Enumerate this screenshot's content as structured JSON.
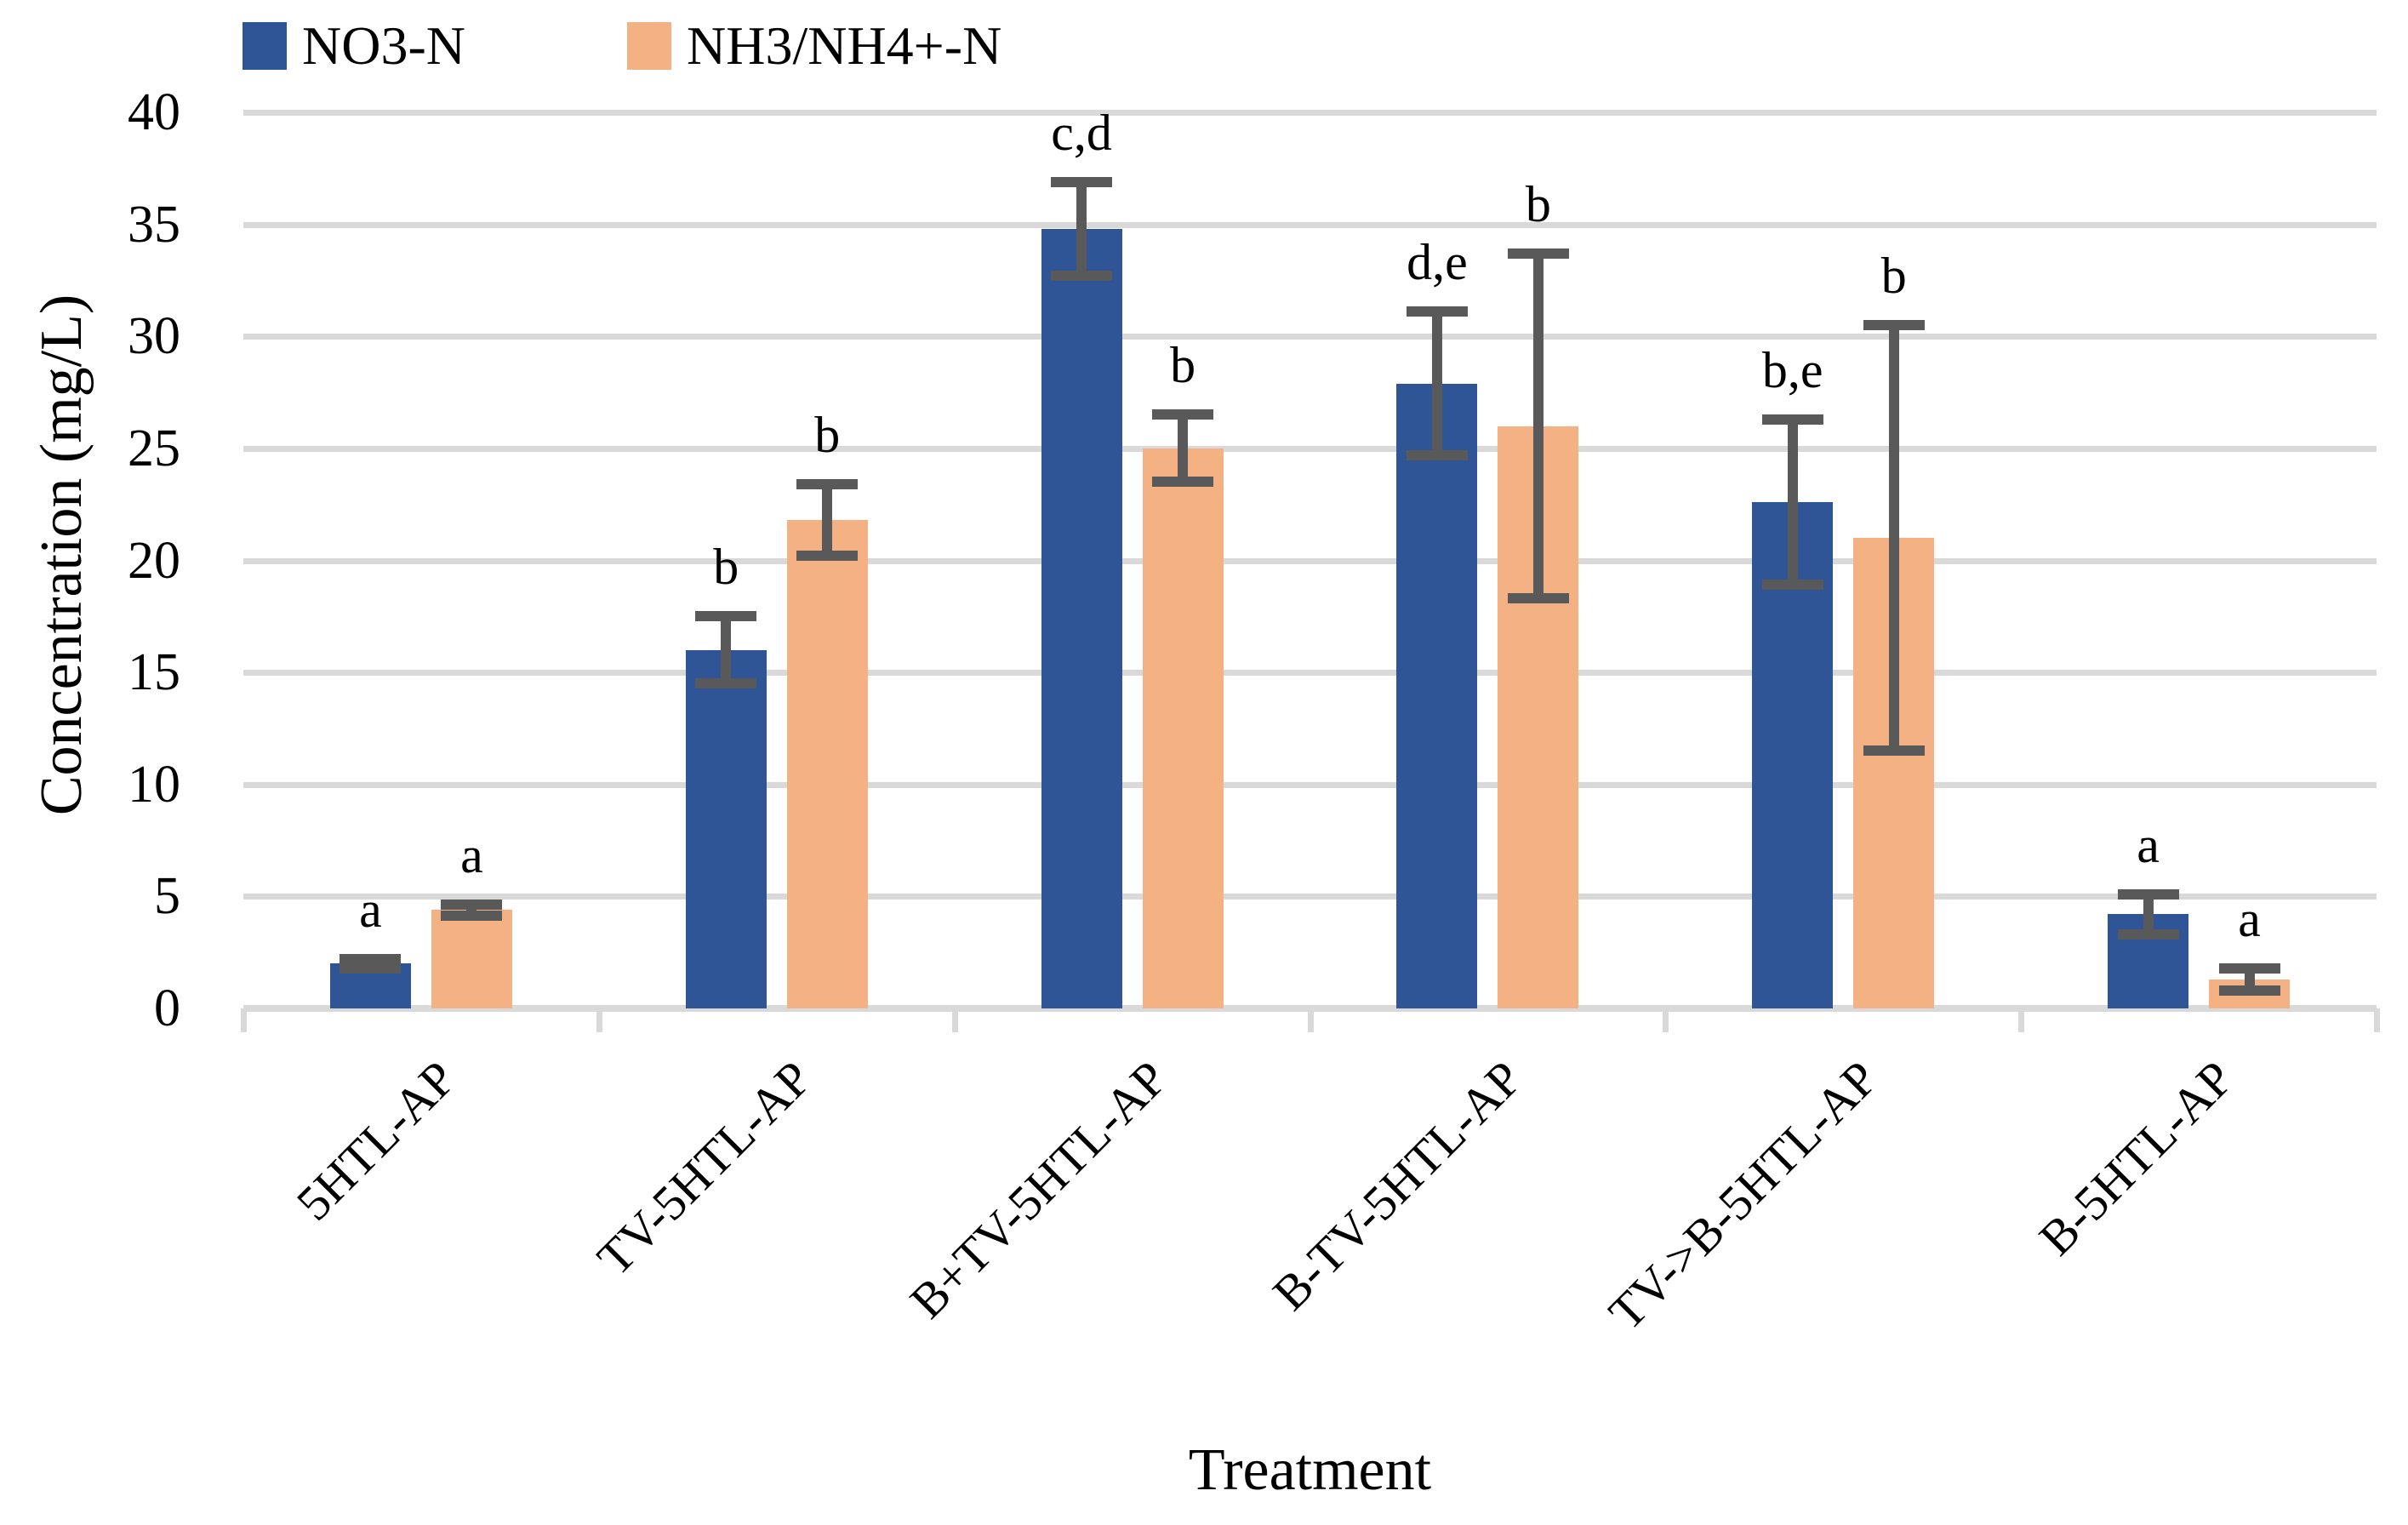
{
  "figure": {
    "background": "#FFFFFF"
  },
  "chart_data": {
    "type": "bar",
    "title": "",
    "xlabel": "Treatment",
    "ylabel": "Concentration (mg/L)",
    "ylim": [
      0,
      40
    ],
    "ytick_step": 5,
    "ytick_labels": [
      "0",
      "5",
      "10",
      "15",
      "20",
      "25",
      "30",
      "35",
      "40"
    ],
    "grid": true,
    "gridline_color": "#D9D9D9",
    "axis_line_color": "#D9D9D9",
    "error_bar_color": "#595959",
    "legend_position": "top-left",
    "categories": [
      "5HTL-AP",
      "TV-5HTL-AP",
      "B+TV-5HTL-AP",
      "B-TV-5HTL-AP",
      "TV->B-5HTL-AP",
      "B-5HTL-AP"
    ],
    "series": [
      {
        "name": "NO3-N",
        "color": "#2F5597",
        "values": [
          2.0,
          16.0,
          34.8,
          27.9,
          22.6,
          4.2
        ],
        "errors": [
          0.2,
          1.5,
          2.1,
          3.2,
          3.7,
          0.9
        ],
        "sig_labels": [
          "a",
          "b",
          "c,d",
          "d,e",
          "b,e",
          "a"
        ]
      },
      {
        "name": "NH3/NH4+-N",
        "color": "#F4B183",
        "values": [
          4.4,
          21.8,
          25.0,
          26.0,
          21.0,
          1.3
        ],
        "errors": [
          0.25,
          1.6,
          1.5,
          7.7,
          9.5,
          0.5
        ],
        "sig_labels": [
          "a",
          "b",
          "b",
          "b",
          "b",
          "a"
        ]
      }
    ]
  }
}
